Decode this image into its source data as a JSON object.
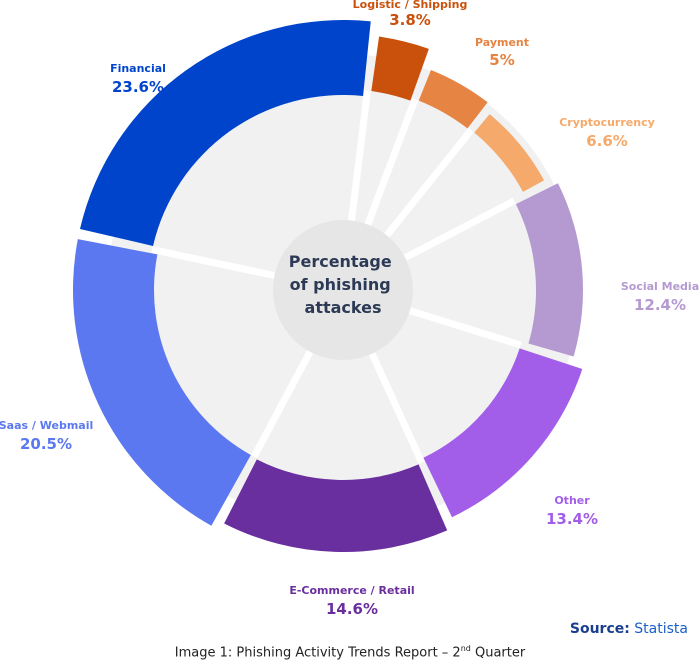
{
  "chart_data": {
    "type": "pie",
    "center_label": [
      "Percentage",
      "of phishing",
      "attackes"
    ],
    "slices": [
      {
        "label": "Logistic / Shipping",
        "value": 3.8,
        "display": "3.8%",
        "color": "#c9510c"
      },
      {
        "label": "Payment",
        "value": 5,
        "display": "5%",
        "color": "#e58443"
      },
      {
        "label": "Cryptocurrency",
        "value": 6.6,
        "display": "6.6%",
        "color": "#f5a96a"
      },
      {
        "label": "Social Media",
        "value": 12.4,
        "display": "12.4%",
        "color": "#b49ad0"
      },
      {
        "label": "Other",
        "value": 13.4,
        "display": "13.4%",
        "color": "#a25ee8"
      },
      {
        "label": "E-Commerce / Retail",
        "value": 14.6,
        "display": "14.6%",
        "color": "#6a2f9e"
      },
      {
        "label": "Saas / Webmail",
        "value": 20.5,
        "display": "20.5%",
        "color": "#5b78f0"
      },
      {
        "label": "Financial",
        "value": 23.6,
        "display": "23.6%",
        "color": "#0044cc"
      }
    ]
  },
  "caption": {
    "prefix": "Image 1: Phishing Activity Trends Report – 2",
    "sup": "nd",
    "suffix": " Quarter"
  },
  "source": {
    "label": "Source:",
    "name": "Statista"
  }
}
